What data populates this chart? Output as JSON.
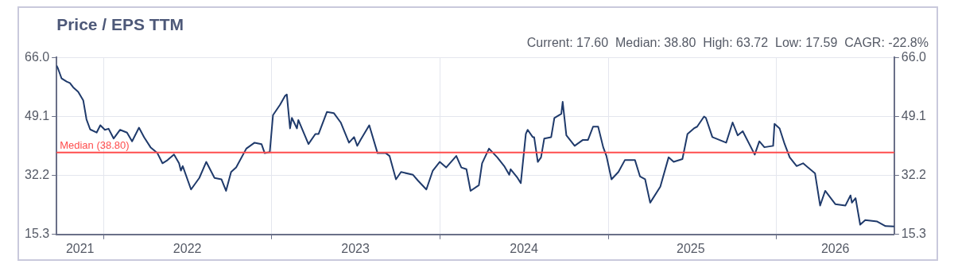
{
  "chart_data": {
    "type": "line",
    "title": "Price / EPS TTM",
    "subtitle": "Current: 17.60  Median: 38.80  High: 63.72  Low: 17.59  CAGR: -22.8%",
    "x": [
      "2021-09-21",
      "2021-09-24",
      "2021-10-02",
      "2021-10-13",
      "2021-10-20",
      "2021-10-27",
      "2021-11-07",
      "2021-11-18",
      "2021-11-25",
      "2021-12-03",
      "2021-12-17",
      "2021-12-25",
      "2022-01-04",
      "2022-01-12",
      "2022-01-23",
      "2022-02-06",
      "2022-02-21",
      "2022-03-04",
      "2022-03-19",
      "2022-03-30",
      "2022-04-13",
      "2022-04-28",
      "2022-05-09",
      "2022-05-20",
      "2022-06-03",
      "2022-06-14",
      "2022-06-18",
      "2022-06-22",
      "2022-07-10",
      "2022-07-28",
      "2022-08-12",
      "2022-08-30",
      "2022-09-14",
      "2022-09-24",
      "2022-10-05",
      "2022-10-16",
      "2022-11-07",
      "2022-11-25",
      "2022-12-10",
      "2022-12-17",
      "2022-12-28",
      "2023-01-04",
      "2023-01-19",
      "2023-01-30",
      "2023-02-03",
      "2023-02-10",
      "2023-02-14",
      "2023-02-25",
      "2023-02-28",
      "2023-03-22",
      "2023-04-06",
      "2023-04-13",
      "2023-05-01",
      "2023-05-16",
      "2023-05-31",
      "2023-06-18",
      "2023-06-29",
      "2023-07-06",
      "2023-07-13",
      "2023-08-01",
      "2023-08-19",
      "2023-09-06",
      "2023-09-14",
      "2023-09-28",
      "2023-10-09",
      "2023-11-04",
      "2023-11-15",
      "2023-12-03",
      "2023-12-17",
      "2024-01-01",
      "2024-01-15",
      "2024-02-06",
      "2024-02-17",
      "2024-02-28",
      "2024-03-08",
      "2024-03-26",
      "2024-04-02",
      "2024-04-17",
      "2024-05-05",
      "2024-05-20",
      "2024-05-31",
      "2024-06-03",
      "2024-06-18",
      "2024-06-25",
      "2024-07-06",
      "2024-07-10",
      "2024-07-21",
      "2024-07-24",
      "2024-08-01",
      "2024-08-08",
      "2024-08-15",
      "2024-08-30",
      "2024-09-06",
      "2024-09-21",
      "2024-09-24",
      "2024-10-02",
      "2024-10-20",
      "2024-11-07",
      "2024-11-18",
      "2024-11-29",
      "2024-12-10",
      "2024-12-21",
      "2024-12-28",
      "2025-01-08",
      "2025-01-23",
      "2025-02-06",
      "2025-02-28",
      "2025-03-11",
      "2025-03-22",
      "2025-04-02",
      "2025-04-24",
      "2025-05-12",
      "2025-05-23",
      "2025-06-11",
      "2025-06-22",
      "2025-07-06",
      "2025-07-13",
      "2025-07-28",
      "2025-08-01",
      "2025-08-15",
      "2025-09-14",
      "2025-09-28",
      "2025-10-09",
      "2025-10-20",
      "2025-11-15",
      "2025-11-25",
      "2025-12-06",
      "2025-12-25",
      "2025-12-28",
      "2026-01-08",
      "2026-01-19",
      "2026-01-30",
      "2026-02-14",
      "2026-02-28",
      "2026-03-26",
      "2026-04-06",
      "2026-04-17",
      "2026-05-09",
      "2026-05-31",
      "2026-06-11",
      "2026-06-14",
      "2026-06-22",
      "2026-07-02",
      "2026-07-13",
      "2026-08-08",
      "2026-08-26",
      "2026-09-14"
    ],
    "series": [
      {
        "color": "#1f3a6b",
        "values": [
          63.7,
          62.9,
          60.0,
          59.1,
          58.7,
          57.5,
          56.2,
          53.7,
          48.3,
          45.4,
          44.5,
          46.6,
          45.3,
          45.6,
          42.8,
          45.3,
          44.5,
          42.0,
          45.9,
          43.2,
          40.3,
          38.6,
          35.7,
          36.6,
          38.2,
          35.7,
          33.6,
          34.9,
          28.2,
          31.5,
          36.1,
          31.5,
          31.1,
          27.8,
          33.2,
          34.5,
          39.9,
          41.6,
          41.2,
          38.6,
          38.9,
          49.5,
          52.4,
          55.0,
          55.4,
          45.7,
          48.7,
          45.7,
          48.1,
          41.2,
          44.1,
          44.1,
          50.4,
          50.1,
          47.4,
          41.6,
          43.2,
          40.7,
          42.4,
          46.6,
          38.6,
          38.6,
          37.8,
          31.1,
          33.2,
          32.4,
          30.7,
          28.2,
          33.6,
          36.1,
          34.5,
          37.8,
          34.5,
          34.0,
          27.8,
          29.4,
          35.7,
          39.9,
          37.4,
          34.9,
          32.4,
          34.0,
          31.5,
          30.0,
          44.1,
          45.3,
          43.2,
          43.2,
          36.1,
          37.4,
          42.8,
          43.2,
          48.7,
          49.9,
          53.3,
          43.7,
          40.7,
          42.4,
          42.4,
          46.2,
          46.2,
          40.3,
          37.8,
          31.1,
          33.2,
          36.6,
          36.6,
          31.9,
          31.1,
          24.4,
          29.0,
          37.4,
          36.1,
          36.9,
          44.1,
          45.7,
          46.2,
          49.1,
          48.7,
          43.2,
          41.6,
          47.4,
          43.7,
          44.9,
          38.2,
          42.0,
          40.3,
          40.7,
          47.0,
          45.7,
          41.2,
          37.4,
          34.9,
          35.7,
          32.8,
          23.6,
          27.8,
          24.0,
          23.6,
          26.5,
          24.4,
          25.7,
          18.1,
          19.4,
          19.0,
          17.7,
          17.6
        ]
      }
    ],
    "xlim": [
      "2021-09-21",
      "2026-09-14"
    ],
    "xticks": [
      {
        "value": "2021-11-11",
        "label": "2021"
      },
      {
        "value": "2022-01-01",
        "label": null
      },
      {
        "value": "2022-07-02",
        "label": "2022"
      },
      {
        "value": "2023-01-01",
        "label": null
      },
      {
        "value": "2023-07-02",
        "label": "2023"
      },
      {
        "value": "2024-01-01",
        "label": null
      },
      {
        "value": "2024-07-02",
        "label": "2024"
      },
      {
        "value": "2025-01-01",
        "label": null
      },
      {
        "value": "2025-06-29",
        "label": "2025"
      },
      {
        "value": "2026-01-01",
        "label": null
      },
      {
        "value": "2026-05-09",
        "label": "2026"
      }
    ],
    "ylim": [
      15.3,
      66.0
    ],
    "yticks": [
      {
        "value": 15.3,
        "label": "15.3"
      },
      {
        "value": 32.2,
        "label": "32.2"
      },
      {
        "value": 49.1,
        "label": "49.1"
      },
      {
        "value": 66.0,
        "label": "66.0"
      }
    ],
    "y2lim": [
      15.3,
      66.0
    ],
    "y2ticks": [
      {
        "value": 15.3,
        "label": "15.3"
      },
      {
        "value": 32.2,
        "label": "32.2"
      },
      {
        "value": 49.1,
        "label": "49.1"
      },
      {
        "value": 66.0,
        "label": "66.0"
      }
    ],
    "ref_lines": [
      {
        "axis": "y",
        "value": 38.8,
        "label": "Median (38.80)",
        "color": "#ff4d4d"
      }
    ],
    "grid": true,
    "marker": "none",
    "line_style": "solid",
    "legend": false
  }
}
